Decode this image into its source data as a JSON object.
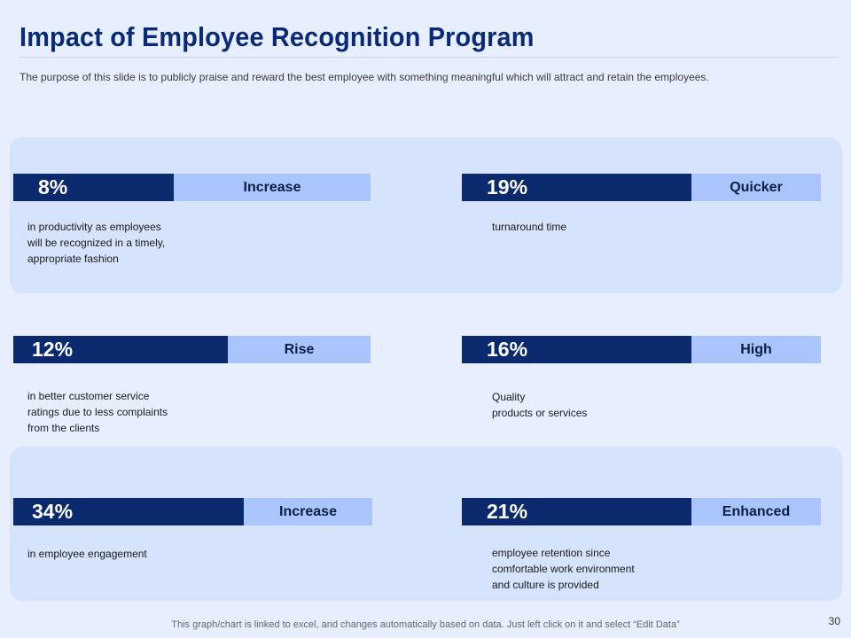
{
  "title": "Impact of Employee Recognition Program",
  "subtitle": "The purpose of this slide is to publicly praise and reward the best employee with something meaningful which will attract and retain the employees.",
  "metrics": [
    {
      "value": "8%",
      "label": "Increase",
      "description": "in productivity as employees\nwill be recognized in a timely,\nappropriate fashion"
    },
    {
      "value": "19%",
      "label": "Quicker",
      "description": "turnaround time"
    },
    {
      "value": "12%",
      "label": "Rise",
      "description": "in better customer service\nratings due to less complaints\nfrom the clients"
    },
    {
      "value": "16%",
      "label": "High",
      "description": "Quality\nproducts or services"
    },
    {
      "value": "34%",
      "label": "Increase",
      "description": "in employee engagement"
    },
    {
      "value": "21%",
      "label": "Enhanced",
      "description": "employee retention since\ncomfortable work environment\nand culture is provided"
    }
  ],
  "footer": "This graph/chart is linked to excel,  and changes automatically based on data. Just left click on it and select “Edit Data”",
  "page_number": "30",
  "colors": {
    "dark_bar": "#0b2a6e",
    "light_bar": "#a9c5fb",
    "band": "#d6e3fd",
    "title": "#0a2a78"
  }
}
